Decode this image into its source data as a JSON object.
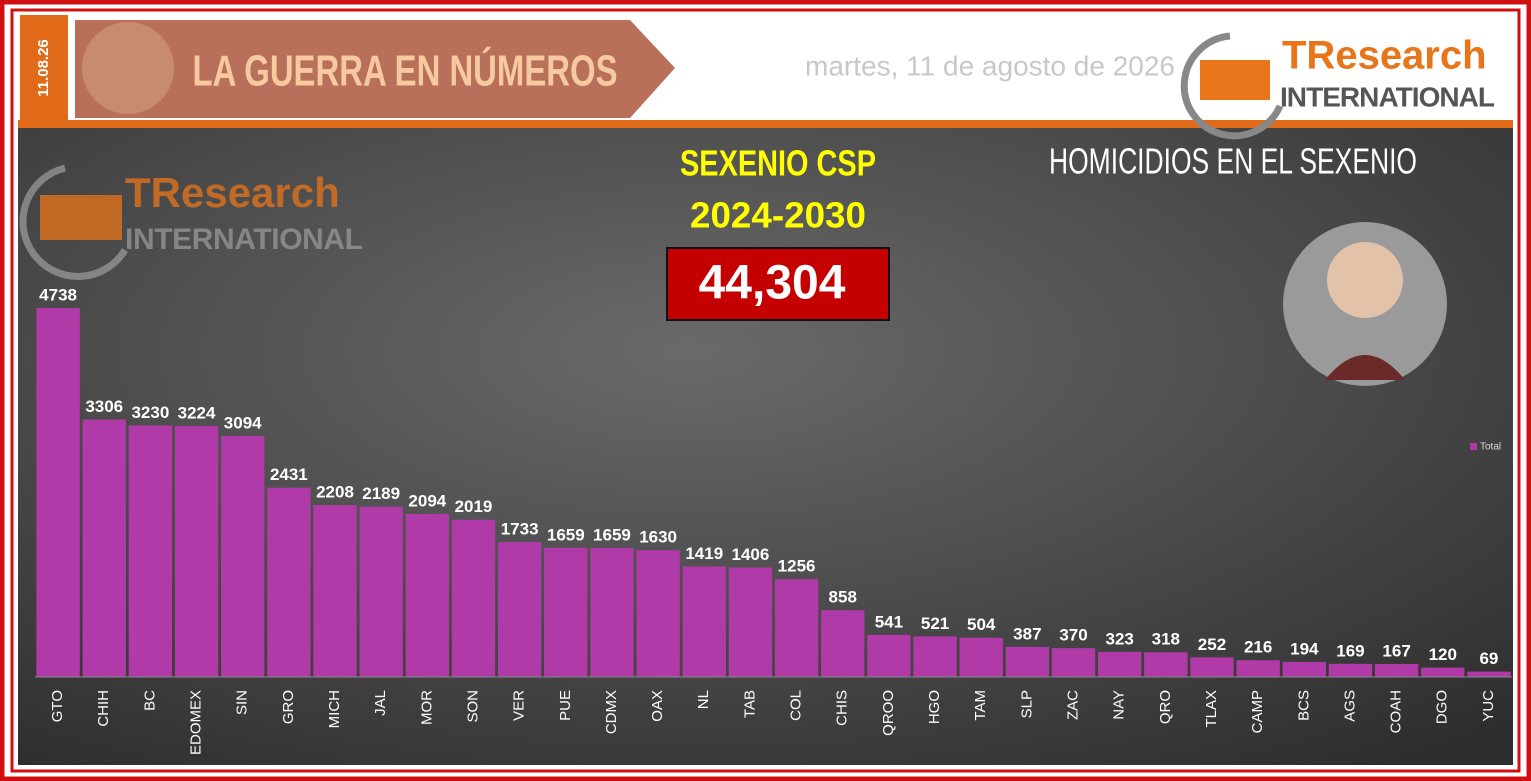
{
  "header": {
    "date_tab": "11.08.26",
    "title": "LA GUERRA EN NÚMEROS",
    "date": "martes, 11 de agosto de 2026",
    "logo_main": "TResearch",
    "logo_sub": "INTERNATIONAL"
  },
  "panel": {
    "period_title": "SEXENIO CSP",
    "period_years": "2024-2030",
    "total": "44,304",
    "subtitle": "HOMICIDIOS EN EL SEXENIO"
  },
  "chart_data": {
    "type": "bar",
    "categories": [
      "GTO",
      "CHIH",
      "BC",
      "EDOMEX",
      "SIN",
      "GRO",
      "MICH",
      "JAL",
      "MOR",
      "SON",
      "VER",
      "PUE",
      "CDMX",
      "OAX",
      "NL",
      "TAB",
      "COL",
      "CHIS",
      "QROO",
      "HGO",
      "TAM",
      "SLP",
      "ZAC",
      "NAY",
      "QRO",
      "TLAX",
      "CAMP",
      "BCS",
      "AGS",
      "COAH",
      "DGO",
      "YUC"
    ],
    "series": [
      {
        "name": "Total",
        "color": "#b03aa8",
        "values": [
          4738,
          3306,
          3230,
          3224,
          3094,
          2431,
          2208,
          2189,
          2094,
          2019,
          1733,
          1659,
          1659,
          1630,
          1419,
          1406,
          1256,
          858,
          541,
          521,
          504,
          387,
          370,
          323,
          318,
          252,
          216,
          194,
          169,
          167,
          120,
          69
        ]
      }
    ],
    "legend": "right"
  }
}
